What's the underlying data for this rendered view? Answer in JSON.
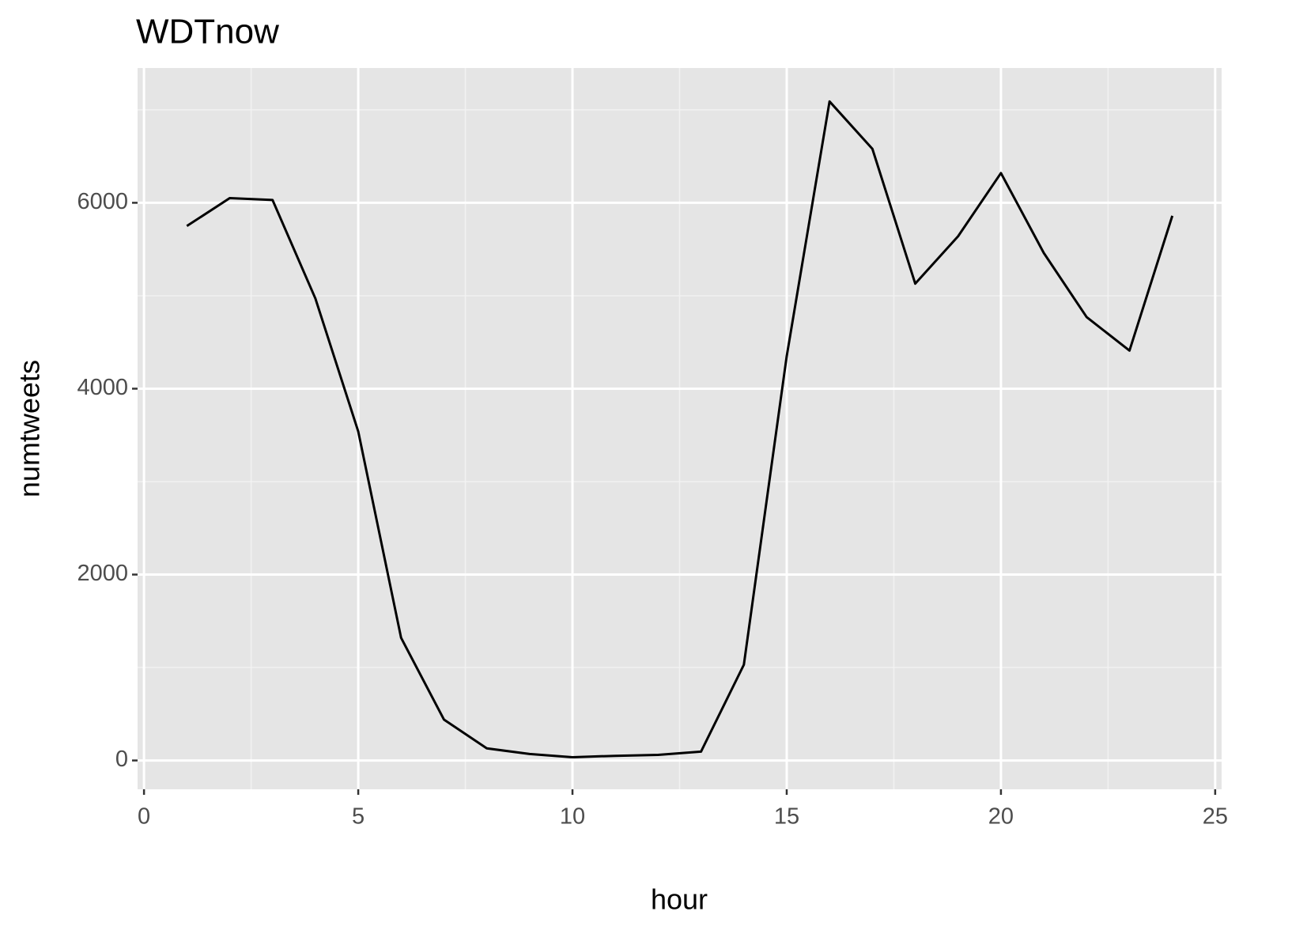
{
  "chart_data": {
    "type": "line",
    "title": "WDTnow",
    "x_label": "hour",
    "y_label": "numtweets",
    "x": [
      1,
      2,
      3,
      4,
      5,
      6,
      7,
      8,
      9,
      10,
      11,
      12,
      13,
      14,
      15,
      16,
      17,
      18,
      19,
      20,
      21,
      22,
      23,
      24
    ],
    "series": [
      {
        "color": "#000000",
        "values": [
          5750,
          6050,
          6030,
          4970,
          3540,
          1320,
          440,
          130,
          70,
          35,
          50,
          60,
          95,
          1030,
          4350,
          7090,
          6580,
          5130,
          5640,
          6320,
          5460,
          4770,
          4410,
          5860
        ]
      }
    ],
    "xlim": [
      -0.15,
      25.15
    ],
    "ylim": [
      -310,
      7450
    ],
    "xticks": [
      0,
      5,
      10,
      15,
      20,
      25
    ],
    "yticks": [
      0,
      2000,
      4000,
      6000
    ],
    "minor_xticks": [
      2.5,
      7.5,
      12.5,
      17.5,
      22.5
    ],
    "minor_yticks": [
      1000,
      3000,
      5000,
      7000
    ],
    "grid": true
  }
}
